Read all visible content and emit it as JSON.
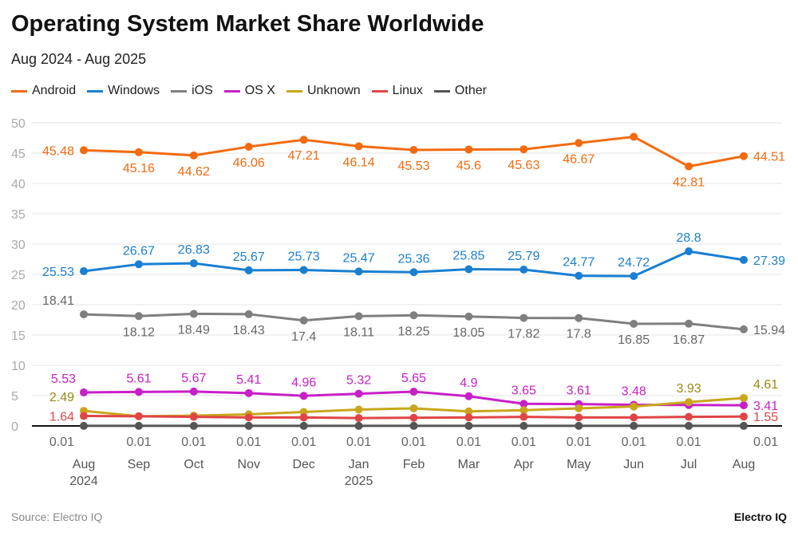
{
  "title": "Operating System Market Share Worldwide",
  "subtitle": "Aug 2024 - Aug 2025",
  "source": "Source: Electro IQ",
  "brand": "Electro IQ",
  "chart_data": {
    "type": "line",
    "title": "Operating System Market Share Worldwide",
    "subtitle": "Aug 2024 - Aug 2025",
    "categories": [
      "Aug",
      "Sep",
      "Oct",
      "Nov",
      "Dec",
      "Jan",
      "Feb",
      "Mar",
      "Apr",
      "May",
      "Jun",
      "Jul",
      "Aug"
    ],
    "category_sublabels": [
      "2024",
      "",
      "",
      "",
      "",
      "2025",
      "",
      "",
      "",
      "",
      "",
      "",
      ""
    ],
    "ylim": [
      0,
      50
    ],
    "yticks": [
      0,
      5,
      10,
      15,
      20,
      25,
      30,
      35,
      40,
      45,
      50
    ],
    "grid": true,
    "legend": "top-left",
    "series": [
      {
        "name": "Android",
        "color": "#f26b0f",
        "values": [
          45.48,
          45.16,
          44.62,
          46.06,
          47.21,
          46.14,
          45.53,
          45.6,
          45.63,
          46.67,
          47.7,
          42.81,
          44.51
        ],
        "labels": [
          "45.48",
          "45.16",
          "44.62",
          "46.06",
          "47.21",
          "46.14",
          "45.53",
          "45.6",
          "45.63",
          "46.67",
          null,
          "42.81",
          "44.51"
        ]
      },
      {
        "name": "Windows",
        "color": "#1a7fd1",
        "values": [
          25.53,
          26.67,
          26.83,
          25.67,
          25.73,
          25.47,
          25.36,
          25.85,
          25.79,
          24.77,
          24.72,
          28.8,
          27.39
        ],
        "labels": [
          "25.53",
          "26.67",
          "26.83",
          "25.67",
          "25.73",
          "25.47",
          "25.36",
          "25.85",
          "25.79",
          "24.77",
          "24.72",
          "28.8",
          "27.39"
        ]
      },
      {
        "name": "iOS",
        "color": "#7f7f7f",
        "values": [
          18.41,
          18.12,
          18.49,
          18.43,
          17.4,
          18.11,
          18.25,
          18.05,
          17.82,
          17.8,
          16.85,
          16.87,
          15.94
        ],
        "labels": [
          "18.41",
          "18.12",
          "18.49",
          "18.43",
          "17.4",
          "18.11",
          "18.25",
          "18.05",
          "17.82",
          "17.8",
          "16.85",
          "16.87",
          "15.94"
        ]
      },
      {
        "name": "OS X",
        "color": "#c81fc8",
        "values": [
          5.53,
          5.61,
          5.67,
          5.41,
          4.96,
          5.32,
          5.65,
          4.9,
          3.65,
          3.61,
          3.48,
          3.45,
          3.41
        ],
        "labels": [
          "5.53",
          "5.61",
          "5.67",
          "5.41",
          "4.96",
          "5.32",
          "5.65",
          "4.9",
          "3.65",
          "3.61",
          "3.48",
          null,
          "3.41"
        ]
      },
      {
        "name": "Unknown",
        "color": "#c9a61c",
        "values": [
          2.49,
          1.6,
          1.7,
          1.9,
          2.3,
          2.7,
          2.9,
          2.4,
          2.6,
          2.9,
          3.2,
          3.93,
          4.61
        ],
        "labels": [
          "2.49",
          null,
          null,
          null,
          null,
          null,
          null,
          null,
          null,
          null,
          null,
          "3.93",
          "4.61"
        ]
      },
      {
        "name": "Linux",
        "color": "#e04545",
        "values": [
          1.64,
          1.6,
          1.5,
          1.4,
          1.4,
          1.3,
          1.35,
          1.4,
          1.5,
          1.4,
          1.4,
          1.5,
          1.55
        ],
        "labels": [
          "1.64",
          null,
          null,
          null,
          null,
          null,
          null,
          null,
          null,
          null,
          null,
          null,
          "1.55"
        ]
      },
      {
        "name": "Other",
        "color": "#555555",
        "values": [
          0.01,
          0.01,
          0.01,
          0.01,
          0.01,
          0.01,
          0.01,
          0.01,
          0.01,
          0.01,
          0.01,
          0.01,
          0.01
        ],
        "labels": [
          "0.01",
          "0.01",
          "0.01",
          "0.01",
          "0.01",
          "0.01",
          "0.01",
          "0.01",
          "0.01",
          "0.01",
          "0.01",
          "0.01",
          "0.01"
        ]
      }
    ]
  }
}
